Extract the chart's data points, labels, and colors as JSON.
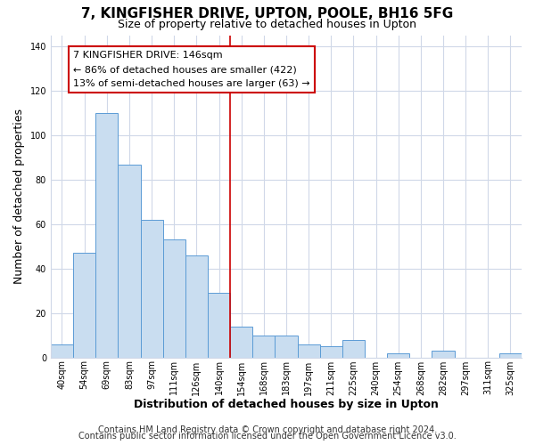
{
  "title": "7, KINGFISHER DRIVE, UPTON, POOLE, BH16 5FG",
  "subtitle": "Size of property relative to detached houses in Upton",
  "xlabel": "Distribution of detached houses by size in Upton",
  "ylabel": "Number of detached properties",
  "bar_labels": [
    "40sqm",
    "54sqm",
    "69sqm",
    "83sqm",
    "97sqm",
    "111sqm",
    "126sqm",
    "140sqm",
    "154sqm",
    "168sqm",
    "183sqm",
    "197sqm",
    "211sqm",
    "225sqm",
    "240sqm",
    "254sqm",
    "268sqm",
    "282sqm",
    "297sqm",
    "311sqm",
    "325sqm"
  ],
  "bar_heights": [
    6,
    47,
    110,
    87,
    62,
    53,
    46,
    29,
    14,
    10,
    10,
    6,
    5,
    8,
    0,
    2,
    0,
    3,
    0,
    0,
    2
  ],
  "bar_color": "#c9ddf0",
  "bar_edge_color": "#5b9bd5",
  "vline_x": 7.5,
  "vline_color": "#cc0000",
  "annotation_text": "7 KINGFISHER DRIVE: 146sqm\n← 86% of detached houses are smaller (422)\n13% of semi-detached houses are larger (63) →",
  "annotation_box_color": "#ffffff",
  "annotation_box_edge_color": "#cc0000",
  "ylim": [
    0,
    145
  ],
  "yticks": [
    0,
    20,
    40,
    60,
    80,
    100,
    120,
    140
  ],
  "footer1": "Contains HM Land Registry data © Crown copyright and database right 2024.",
  "footer2": "Contains public sector information licensed under the Open Government Licence v3.0.",
  "bg_color": "#ffffff",
  "plot_bg_color": "#ffffff",
  "grid_color": "#d0d8e8",
  "title_fontsize": 11,
  "subtitle_fontsize": 9,
  "axis_label_fontsize": 9,
  "tick_fontsize": 7,
  "footer_fontsize": 7,
  "ann_fontsize": 8
}
